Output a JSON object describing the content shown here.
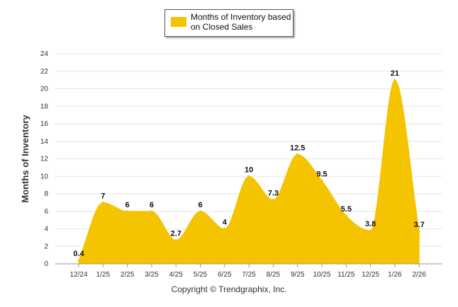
{
  "legend": {
    "label": "Months of Inventory based on Closed Sales"
  },
  "footer": {
    "copyright": "Copyright © Trendgraphix, Inc."
  },
  "colors": {
    "series": "#F5C400",
    "grid": "#e6e6e6",
    "axis": "#555555"
  },
  "chart_data": {
    "type": "area",
    "ylabel": "Months of Inventory",
    "xlabel": "",
    "ylim": [
      0,
      24
    ],
    "yticks": [
      0,
      2,
      4,
      6,
      8,
      10,
      12,
      14,
      16,
      18,
      20,
      22,
      24
    ],
    "grid": true,
    "legend_position": "top-center",
    "categories": [
      "12/24",
      "1/25",
      "2/25",
      "3/25",
      "4/25",
      "5/25",
      "6/25",
      "7/25",
      "8/25",
      "9/25",
      "10/25",
      "11/25",
      "12/25",
      "1/26",
      "2/26"
    ],
    "series": [
      {
        "name": "Months of Inventory based on Closed Sales",
        "values": [
          0.4,
          7,
          6,
          6,
          2.7,
          6,
          4,
          10,
          7.3,
          12.5,
          9.5,
          5.5,
          3.8,
          21,
          3.7
        ],
        "labels": [
          "0.4",
          "7",
          "6",
          "6",
          "2.7",
          "6",
          "4",
          "10",
          "7.3",
          "12.5",
          "9.5",
          "5.5",
          "3.8",
          "21",
          "3.7"
        ]
      }
    ]
  }
}
